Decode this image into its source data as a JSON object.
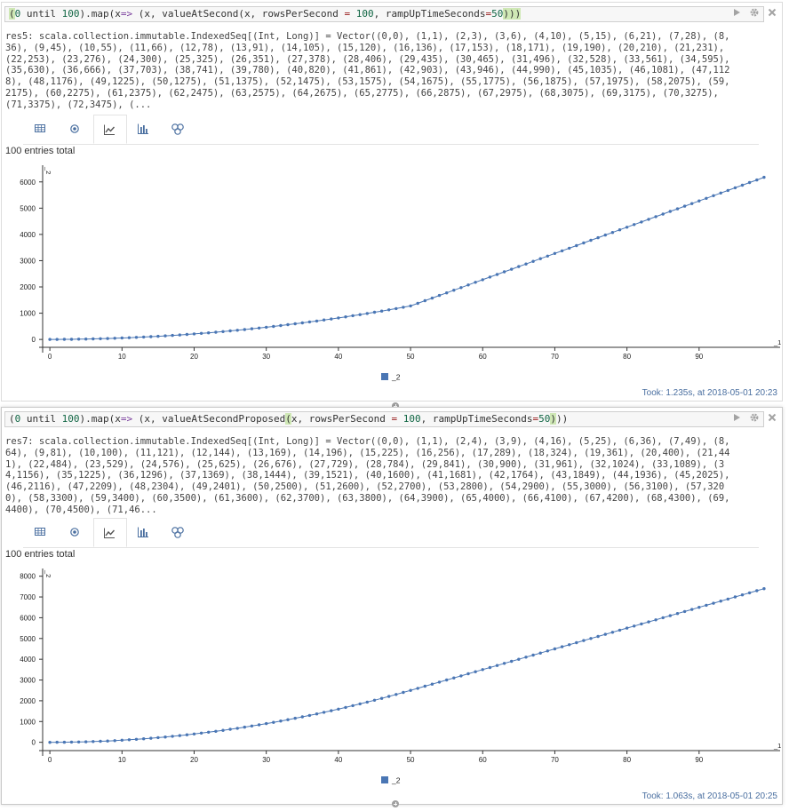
{
  "cells": [
    {
      "input": {
        "tokens": [
          {
            "t": "(",
            "c": "par bracket-hl"
          },
          {
            "t": "0",
            "c": "num"
          },
          {
            "t": " until ",
            "c": "par"
          },
          {
            "t": "100",
            "c": "num"
          },
          {
            "t": ").map(",
            "c": "par"
          },
          {
            "t": "x",
            "c": "par"
          },
          {
            "t": "=>",
            "c": "kw"
          },
          {
            "t": " (x, valueAtSecond(x, rowsPerSecond ",
            "c": "par"
          },
          {
            "t": "=",
            "c": "op"
          },
          {
            "t": " ",
            "c": "par"
          },
          {
            "t": "100",
            "c": "num"
          },
          {
            "t": ", rampUpTimeSeconds",
            "c": "par"
          },
          {
            "t": "=",
            "c": "op"
          },
          {
            "t": "50",
            "c": "num"
          },
          {
            "t": ")))",
            "c": "par bracket-hl"
          }
        ]
      },
      "output_lines": [
        "res5: scala.collection.immutable.IndexedSeq[(Int, Long)] = Vector((0,0), (1,1), (2,3), (3,6), (4,10), (5,15), (6,21), (7,28), (8,",
        "36), (9,45), (10,55), (11,66), (12,78), (13,91), (14,105), (15,120), (16,136), (17,153), (18,171), (19,190), (20,210), (21,231),",
        "(22,253), (23,276), (24,300), (25,325), (26,351), (27,378), (28,406), (29,435), (30,465), (31,496), (32,528), (33,561), (34,595),",
        "(35,630), (36,666), (37,703), (38,741), (39,780), (40,820), (41,861), (42,903), (43,946), (44,990), (45,1035), (46,1081), (47,112",
        "8), (48,1176), (49,1225), (50,1275), (51,1375), (52,1475), (53,1575), (54,1675), (55,1775), (56,1875), (57,1975), (58,2075), (59,",
        "2175), (60,2275), (61,2375), (62,2475), (63,2575), (64,2675), (65,2775), (66,2875), (67,2975), (68,3075), (69,3175), (70,3275),",
        "(71,3375), (72,3475), (..."
      ],
      "entries_label": "100 entries total",
      "took": "Took: 1.235s, at 2018-05-01 20:23"
    },
    {
      "input": {
        "tokens": [
          {
            "t": "(",
            "c": "par"
          },
          {
            "t": "0",
            "c": "num"
          },
          {
            "t": " until ",
            "c": "par"
          },
          {
            "t": "100",
            "c": "num"
          },
          {
            "t": ").map(",
            "c": "par"
          },
          {
            "t": "x",
            "c": "par"
          },
          {
            "t": "=>",
            "c": "kw"
          },
          {
            "t": " (x, valueAtSecondProposed",
            "c": "par"
          },
          {
            "t": "(",
            "c": "par bracket-hl"
          },
          {
            "t": "x, rowsPerSecond ",
            "c": "par"
          },
          {
            "t": "=",
            "c": "op"
          },
          {
            "t": " ",
            "c": "par"
          },
          {
            "t": "100",
            "c": "num"
          },
          {
            "t": ", rampUpTimeSeconds",
            "c": "par"
          },
          {
            "t": "=",
            "c": "op"
          },
          {
            "t": "50",
            "c": "num"
          },
          {
            "t": ")",
            "c": "par bracket-hl"
          },
          {
            "t": "))",
            "c": "par"
          }
        ]
      },
      "output_lines": [
        "res7: scala.collection.immutable.IndexedSeq[(Int, Long)] = Vector((0,0), (1,1), (2,4), (3,9), (4,16), (5,25), (6,36), (7,49), (8,",
        "64), (9,81), (10,100), (11,121), (12,144), (13,169), (14,196), (15,225), (16,256), (17,289), (18,324), (19,361), (20,400), (21,44",
        "1), (22,484), (23,529), (24,576), (25,625), (26,676), (27,729), (28,784), (29,841), (30,900), (31,961), (32,1024), (33,1089), (3",
        "4,1156), (35,1225), (36,1296), (37,1369), (38,1444), (39,1521), (40,1600), (41,1681), (42,1764), (43,1849), (44,1936), (45,2025),",
        "(46,2116), (47,2209), (48,2304), (49,2401), (50,2500), (51,2600), (52,2700), (53,2800), (54,2900), (55,3000), (56,3100), (57,320",
        "0), (58,3300), (59,3400), (60,3500), (61,3600), (62,3700), (63,3800), (64,3900), (65,4000), (66,4100), (67,4200), (68,4300), (69,",
        "4400), (70,4500), (71,46..."
      ],
      "entries_label": "100 entries total",
      "took": "Took: 1.063s, at 2018-05-01 20:25"
    }
  ],
  "tab_icons": [
    "table-icon",
    "scatter-icon",
    "line-chart-icon",
    "bar-chart-icon",
    "pie-chart-icon"
  ],
  "colors": {
    "series": "#4a76b4",
    "tab_icon": "#4a6fa0",
    "took": "#4a6fa0"
  },
  "chart_data": [
    {
      "type": "line",
      "xlabel": "_1",
      "ylabel": "_2",
      "legend": [
        "_2"
      ],
      "legend_placement": "bottom-center",
      "xlim": [
        -1,
        100
      ],
      "ylim": [
        -300,
        6500
      ],
      "xticks": [
        0,
        10,
        20,
        30,
        40,
        50,
        60,
        70,
        80,
        90
      ],
      "yticks": [
        0,
        1000,
        2000,
        3000,
        4000,
        5000,
        6000
      ],
      "series": [
        {
          "formula": "ramp_triangular",
          "x_range": [
            0,
            99
          ]
        }
      ]
    },
    {
      "type": "line",
      "xlabel": "_1",
      "ylabel": "_2",
      "legend": [
        "_2"
      ],
      "legend_placement": "bottom-center",
      "xlim": [
        -1,
        100
      ],
      "ylim": [
        -400,
        8200
      ],
      "xticks": [
        0,
        10,
        20,
        30,
        40,
        50,
        60,
        70,
        80,
        90
      ],
      "yticks": [
        0,
        1000,
        2000,
        3000,
        4000,
        5000,
        6000,
        7000,
        8000
      ],
      "series": [
        {
          "formula": "ramp_square",
          "x_range": [
            0,
            99
          ]
        }
      ]
    }
  ]
}
